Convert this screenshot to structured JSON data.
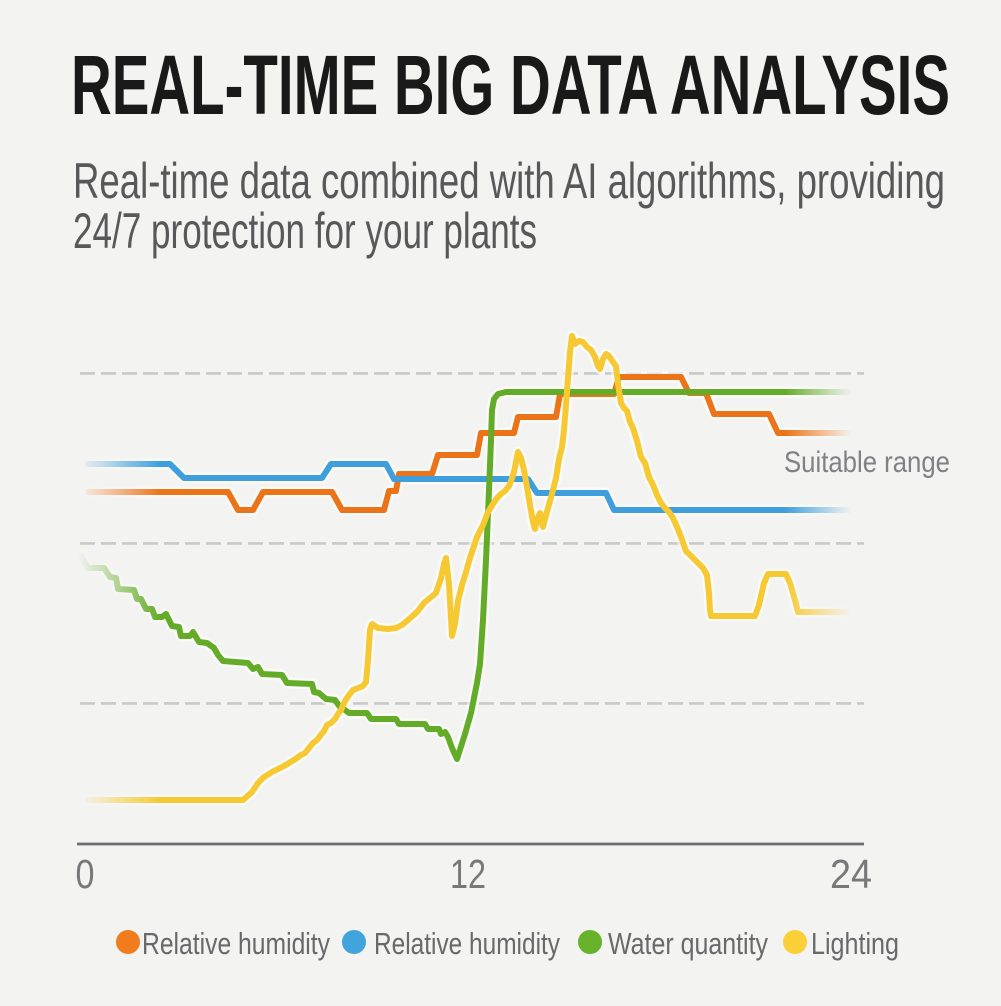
{
  "page": {
    "background": "#f3f3f1"
  },
  "header": {
    "title": "REAL-TIME BIG DATA ANALYSIS",
    "subtitle_line1": "Real-time data combined with AI algorithms, providing",
    "subtitle_line2": "24/7 protection for your plants"
  },
  "chart_data": {
    "type": "line",
    "title": "",
    "xlabel": "",
    "ylabel": "",
    "xlim": [
      0,
      24
    ],
    "ylim": [
      0,
      108
    ],
    "x_ticks": [
      {
        "value": 0,
        "label": "0"
      },
      {
        "value": 12,
        "label": "12"
      },
      {
        "value": 24,
        "label": "24"
      }
    ],
    "grid": "horizontal-dashed",
    "gridline_values": [
      100.0,
      63.87,
      29.87
    ],
    "annotation": "Suitable range",
    "legend_position": "bottom",
    "series": [
      {
        "name": "Relative humidity",
        "color": "#ec7418",
        "dot_color": "#f07c1e",
        "points": [
          [
            0.094,
            74.8
          ],
          [
            4.48,
            74.8
          ],
          [
            4.794,
            70.97
          ],
          [
            5.264,
            70.97
          ],
          [
            5.577,
            74.8
          ],
          [
            7.739,
            74.8
          ],
          [
            8.052,
            70.97
          ],
          [
            9.368,
            70.97
          ],
          [
            9.525,
            75.01
          ],
          [
            9.744,
            75.01
          ],
          [
            9.838,
            78.62
          ],
          [
            10.872,
            78.62
          ],
          [
            11.06,
            82.66
          ],
          [
            12.282,
            82.66
          ],
          [
            12.407,
            87.34
          ],
          [
            13.441,
            87.34
          ],
          [
            13.567,
            90.74
          ],
          [
            14.757,
            90.74
          ],
          [
            14.883,
            95.62
          ],
          [
            16.574,
            95.62
          ],
          [
            16.731,
            99.24
          ],
          [
            18.674,
            99.24
          ],
          [
            18.924,
            95.84
          ],
          [
            19.457,
            95.84
          ],
          [
            19.708,
            91.37
          ],
          [
            21.431,
            91.37
          ],
          [
            21.713,
            87.34
          ],
          [
            24.219,
            87.34
          ]
        ]
      },
      {
        "name": "Relative humidity",
        "color": "#3f9fdc",
        "dot_color": "#41a4dd",
        "points": [
          [
            0.094,
            80.75
          ],
          [
            2.663,
            80.75
          ],
          [
            3.102,
            77.77
          ],
          [
            7.426,
            77.77
          ],
          [
            7.708,
            80.75
          ],
          [
            9.431,
            80.75
          ],
          [
            9.681,
            77.56
          ],
          [
            13.88,
            77.56
          ],
          [
            14.162,
            74.59
          ],
          [
            16.324,
            74.59
          ],
          [
            16.574,
            70.97
          ],
          [
            24.031,
            70.97
          ]
        ]
      },
      {
        "name": "Water quantity",
        "color": "#64ac28",
        "dot_color": "#66b22a",
        "points": [
          [
            -0.125,
            61.2
          ],
          [
            0.094,
            58.65
          ],
          [
            0.595,
            58.65
          ],
          [
            0.783,
            56.74
          ],
          [
            0.971,
            56.52
          ],
          [
            1.034,
            54.19
          ],
          [
            1.535,
            53.97
          ],
          [
            1.629,
            52.06
          ],
          [
            1.755,
            52.06
          ],
          [
            1.911,
            49.94
          ],
          [
            2.099,
            49.94
          ],
          [
            2.193,
            48.24
          ],
          [
            2.413,
            48.24
          ],
          [
            2.538,
            48.87
          ],
          [
            2.726,
            46.32
          ],
          [
            2.945,
            46.11
          ],
          [
            3.008,
            44.2
          ],
          [
            3.29,
            44.2
          ],
          [
            3.384,
            45.05
          ],
          [
            3.572,
            42.92
          ],
          [
            3.822,
            42.71
          ],
          [
            4.042,
            41.65
          ],
          [
            4.167,
            40.16
          ],
          [
            4.324,
            38.89
          ],
          [
            5.107,
            38.46
          ],
          [
            5.264,
            37.19
          ],
          [
            5.42,
            37.61
          ],
          [
            5.546,
            36.12
          ],
          [
            6.172,
            35.91
          ],
          [
            6.329,
            34.21
          ],
          [
            7.112,
            34.0
          ],
          [
            7.175,
            32.3
          ],
          [
            7.332,
            32.09
          ],
          [
            7.551,
            30.81
          ],
          [
            7.833,
            30.6
          ],
          [
            7.99,
            29.11
          ],
          [
            8.146,
            28.47
          ],
          [
            8.272,
            27.84
          ],
          [
            8.836,
            27.84
          ],
          [
            8.961,
            26.56
          ],
          [
            9.744,
            26.56
          ],
          [
            9.838,
            25.5
          ],
          [
            10.653,
            25.5
          ],
          [
            10.747,
            24.44
          ],
          [
            11.091,
            24.44
          ],
          [
            11.154,
            23.37
          ],
          [
            11.279,
            23.8
          ],
          [
            11.373,
            22.74
          ],
          [
            11.499,
            20.4
          ],
          [
            11.655,
            18.06
          ],
          [
            11.906,
            23.37
          ],
          [
            12.094,
            27.84
          ],
          [
            12.282,
            34.21
          ],
          [
            12.376,
            38.25
          ],
          [
            12.47,
            47.6
          ],
          [
            12.564,
            60.35
          ],
          [
            12.658,
            75.22
          ],
          [
            12.721,
            85.85
          ],
          [
            12.752,
            92.22
          ],
          [
            12.815,
            94.56
          ],
          [
            12.94,
            95.62
          ],
          [
            13.191,
            96.05
          ],
          [
            24.188,
            96.05
          ]
        ]
      },
      {
        "name": "Lighting",
        "color": "#f6c933",
        "dot_color": "#fbcf38",
        "points": [
          [
            0.094,
            9.35
          ],
          [
            4.95,
            9.35
          ],
          [
            5.232,
            11.05
          ],
          [
            5.42,
            12.96
          ],
          [
            5.608,
            14.24
          ],
          [
            5.859,
            15.3
          ],
          [
            6.235,
            16.57
          ],
          [
            6.548,
            17.85
          ],
          [
            6.768,
            18.91
          ],
          [
            6.893,
            19.34
          ],
          [
            7.018,
            20.4
          ],
          [
            7.144,
            21.46
          ],
          [
            7.269,
            22.1
          ],
          [
            7.363,
            22.95
          ],
          [
            7.488,
            24.01
          ],
          [
            7.582,
            25.29
          ],
          [
            7.708,
            25.71
          ],
          [
            7.833,
            26.56
          ],
          [
            7.927,
            27.62
          ],
          [
            8.021,
            28.47
          ],
          [
            8.146,
            30.39
          ],
          [
            8.272,
            31.66
          ],
          [
            8.397,
            32.72
          ],
          [
            8.554,
            33.15
          ],
          [
            8.71,
            33.57
          ],
          [
            8.804,
            34.42
          ],
          [
            8.867,
            39.1
          ],
          [
            8.93,
            45.47
          ],
          [
            8.992,
            46.75
          ],
          [
            9.18,
            45.9
          ],
          [
            9.493,
            45.69
          ],
          [
            9.744,
            45.9
          ],
          [
            9.932,
            46.54
          ],
          [
            10.12,
            47.6
          ],
          [
            10.402,
            49.3
          ],
          [
            10.621,
            51.21
          ],
          [
            10.809,
            52.27
          ],
          [
            10.997,
            53.34
          ],
          [
            11.154,
            56.52
          ],
          [
            11.248,
            59.5
          ],
          [
            11.311,
            60.77
          ],
          [
            11.405,
            55.25
          ],
          [
            11.499,
            44.2
          ],
          [
            11.593,
            46.75
          ],
          [
            11.687,
            51.64
          ],
          [
            11.812,
            55.04
          ],
          [
            11.937,
            57.8
          ],
          [
            12.063,
            60.77
          ],
          [
            12.282,
            65.24
          ],
          [
            12.47,
            67.79
          ],
          [
            12.627,
            70.55
          ],
          [
            12.783,
            72.25
          ],
          [
            12.909,
            73.52
          ],
          [
            13.034,
            74.37
          ],
          [
            13.159,
            75.01
          ],
          [
            13.285,
            76.07
          ],
          [
            13.347,
            77.14
          ],
          [
            13.441,
            79.05
          ],
          [
            13.504,
            81.17
          ],
          [
            13.567,
            83.3
          ],
          [
            13.661,
            82.02
          ],
          [
            13.755,
            79.47
          ],
          [
            13.849,
            75.86
          ],
          [
            13.943,
            72.04
          ],
          [
            14.037,
            68.42
          ],
          [
            14.099,
            66.94
          ],
          [
            14.193,
            69.49
          ],
          [
            14.256,
            70.34
          ],
          [
            14.35,
            67.36
          ],
          [
            14.444,
            69.91
          ],
          [
            14.569,
            72.89
          ],
          [
            14.663,
            75.22
          ],
          [
            14.757,
            77.77
          ],
          [
            14.851,
            81.81
          ],
          [
            14.945,
            84.36
          ],
          [
            15.008,
            87.97
          ],
          [
            15.07,
            93.29
          ],
          [
            15.133,
            99.02
          ],
          [
            15.196,
            104.55
          ],
          [
            15.258,
            107.95
          ],
          [
            15.352,
            106.25
          ],
          [
            15.478,
            106.88
          ],
          [
            15.603,
            106.67
          ],
          [
            15.728,
            105.61
          ],
          [
            15.854,
            104.97
          ],
          [
            15.979,
            103.48
          ],
          [
            16.073,
            101.57
          ],
          [
            16.136,
            100.93
          ],
          [
            16.23,
            103.06
          ],
          [
            16.324,
            104.12
          ],
          [
            16.418,
            103.7
          ],
          [
            16.543,
            102.42
          ],
          [
            16.637,
            101.57
          ],
          [
            16.7,
            97.75
          ],
          [
            16.794,
            93.71
          ],
          [
            16.888,
            92.65
          ],
          [
            16.982,
            92.01
          ],
          [
            17.076,
            89.67
          ],
          [
            17.17,
            88.4
          ],
          [
            17.295,
            85.64
          ],
          [
            17.42,
            82.24
          ],
          [
            17.546,
            80.96
          ],
          [
            17.671,
            77.99
          ],
          [
            17.796,
            76.29
          ],
          [
            17.922,
            74.16
          ],
          [
            18.047,
            72.46
          ],
          [
            18.172,
            71.4
          ],
          [
            18.298,
            70.55
          ],
          [
            18.423,
            69.27
          ],
          [
            18.548,
            67.36
          ],
          [
            18.674,
            65.24
          ],
          [
            18.83,
            62.26
          ],
          [
            18.987,
            61.2
          ],
          [
            19.175,
            59.92
          ],
          [
            19.363,
            58.65
          ],
          [
            19.488,
            57.16
          ],
          [
            19.551,
            53.34
          ],
          [
            19.582,
            49.72
          ],
          [
            19.614,
            48.45
          ],
          [
            20.992,
            48.45
          ],
          [
            21.117,
            50.79
          ],
          [
            21.274,
            55.46
          ],
          [
            21.399,
            57.37
          ],
          [
            21.963,
            57.37
          ],
          [
            22.089,
            55.46
          ],
          [
            22.245,
            51.85
          ],
          [
            22.339,
            49.3
          ],
          [
            24.031,
            49.3
          ]
        ]
      }
    ]
  }
}
